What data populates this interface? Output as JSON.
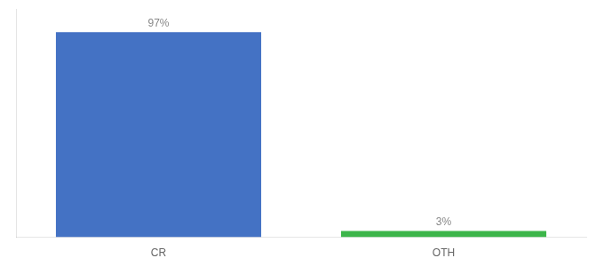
{
  "chart_data": {
    "type": "bar",
    "categories": [
      "CR",
      "OTH"
    ],
    "values": [
      97,
      3
    ],
    "colors": [
      "#4472C4",
      "#3CB54A"
    ],
    "value_labels": [
      "97%",
      "3%"
    ],
    "data_labels": true,
    "ylim": [
      0,
      108
    ],
    "grid": false,
    "tick_labels": "x"
  }
}
